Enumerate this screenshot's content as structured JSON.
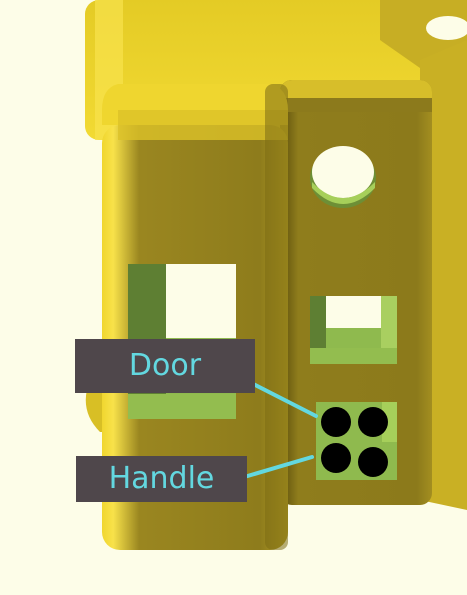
{
  "callouts": {
    "door": {
      "label": "Door"
    },
    "handle": {
      "label": "Handle"
    }
  },
  "colors": {
    "background": "#fdfde8",
    "body_light": "#e8d02a",
    "body_dark": "#8c7a1c",
    "body_shadow": "#6b5c10",
    "slot_green": "#8fba4e",
    "slot_dark_green": "#5e7f33",
    "label_bg": "#4f474b",
    "label_text": "#63d8e0",
    "hole_black": "#000000"
  }
}
